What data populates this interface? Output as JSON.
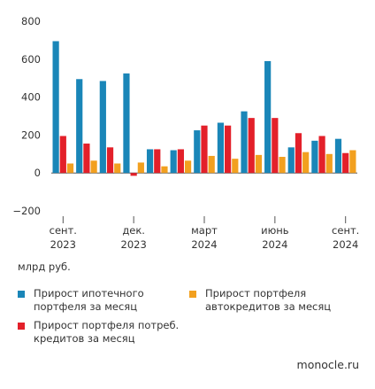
{
  "chart_data": {
    "type": "bar",
    "ylim": [
      -200,
      800
    ],
    "yticks": [
      -200,
      0,
      200,
      400,
      600,
      800
    ],
    "unit_label": "млрд руб.",
    "x_tick_labels": [
      {
        "index": 0,
        "line1": "сент.",
        "line2": "2023"
      },
      {
        "index": 3,
        "line1": "дек.",
        "line2": "2023"
      },
      {
        "index": 6,
        "line1": "март",
        "line2": "2024"
      },
      {
        "index": 9,
        "line1": "июнь",
        "line2": "2024"
      },
      {
        "index": 12,
        "line1": "сент.",
        "line2": "2024"
      }
    ],
    "months": [
      "сент. 2023",
      "окт. 2023",
      "нояб. 2023",
      "дек. 2023",
      "янв. 2024",
      "февр. 2024",
      "март 2024",
      "апр. 2024",
      "май 2024",
      "июнь 2024",
      "июль 2024",
      "авг. 2024",
      "сент. 2024"
    ],
    "series": [
      {
        "name": "Прирост ипотечного\nпортфеля за месяц",
        "color": "#1a86b8",
        "values": [
          695,
          495,
          485,
          525,
          125,
          120,
          225,
          265,
          325,
          590,
          135,
          170,
          180
        ]
      },
      {
        "name": "Прирост портфеля потреб.\nкредитов за месяц",
        "color": "#e3202a",
        "values": [
          195,
          155,
          135,
          -15,
          125,
          125,
          250,
          250,
          290,
          290,
          210,
          195,
          105
        ]
      },
      {
        "name": "Прирост портфеля\nавтокредитов за месяц",
        "color": "#f2a01f",
        "values": [
          50,
          65,
          50,
          55,
          35,
          65,
          90,
          75,
          95,
          85,
          110,
          100,
          120
        ]
      }
    ]
  },
  "source": "monocle.ru"
}
